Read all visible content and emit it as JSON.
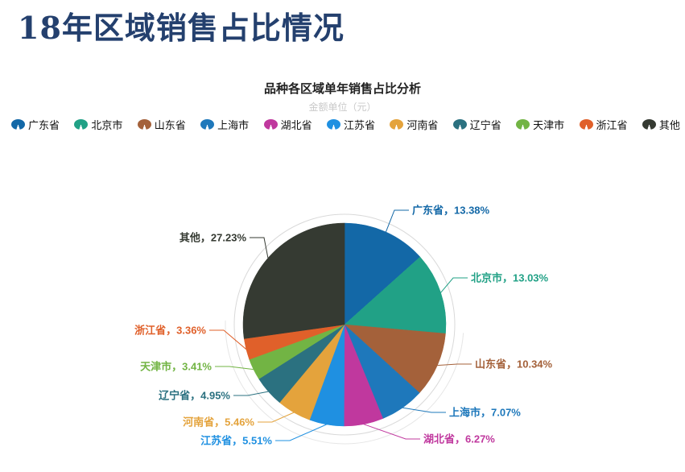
{
  "page": {
    "title": "18年区域销售占比情况"
  },
  "chart_data": {
    "type": "pie",
    "title": "品种各区域单年销售占比分析",
    "subtitle": "金额单位（元）",
    "legend_position": "top",
    "label_format": "{name}，{value}%",
    "start_angle_deg_clockwise_from_top": 0,
    "slices": [
      {
        "name": "广东省",
        "value": 13.38,
        "color": "#1368a7"
      },
      {
        "name": "北京市",
        "value": 13.03,
        "color": "#21a186"
      },
      {
        "name": "山东省",
        "value": 10.34,
        "color": "#a4613a"
      },
      {
        "name": "上海市",
        "value": 7.07,
        "color": "#1e78bb"
      },
      {
        "name": "湖北省",
        "value": 6.27,
        "color": "#c0389e"
      },
      {
        "name": "江苏省",
        "value": 5.51,
        "color": "#1f90e1"
      },
      {
        "name": "河南省",
        "value": 5.46,
        "color": "#e4a33c"
      },
      {
        "name": "辽宁省",
        "value": 4.95,
        "color": "#2b7180"
      },
      {
        "name": "天津市",
        "value": 3.41,
        "color": "#72b444"
      },
      {
        "name": "浙江省",
        "value": 3.36,
        "color": "#e0602a"
      },
      {
        "name": "其他",
        "value": 27.23,
        "color": "#353a32"
      }
    ]
  }
}
